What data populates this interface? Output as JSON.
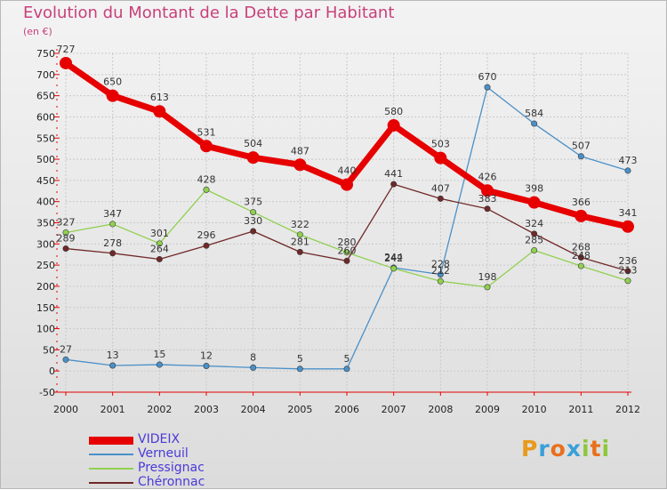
{
  "title": "Evolution du Montant de la Dette par Habitant",
  "unit": "(en €)",
  "logo": "Proxiti",
  "logo_colors": [
    "#e89a1c",
    "#3aa0d8",
    "#e8701c",
    "#3aa0d8",
    "#8cc83c",
    "#e8701c",
    "#8cc83c"
  ],
  "chart_data": {
    "type": "line",
    "x": [
      "2000",
      "2001",
      "2002",
      "2003",
      "2004",
      "2005",
      "2006",
      "2007",
      "2008",
      "2009",
      "2010",
      "2011",
      "2012"
    ],
    "ylim": [
      -50,
      750
    ],
    "yticks": [
      "-50",
      "0",
      "50",
      "100",
      "150",
      "200",
      "250",
      "300",
      "350",
      "400",
      "450",
      "500",
      "550",
      "600",
      "650",
      "700",
      "750"
    ],
    "grid": true,
    "legend": "bottom-left",
    "series": [
      {
        "name": "VIDEIX",
        "color": "#e60000",
        "values": [
          727,
          650,
          613,
          531,
          504,
          487,
          440,
          580,
          503,
          426,
          398,
          366,
          341
        ],
        "labels": [
          "727",
          "650",
          "613",
          "531",
          "504",
          "487",
          "440",
          "580",
          "503",
          "426",
          "398",
          "366",
          "341"
        ]
      },
      {
        "name": "Verneuil",
        "color": "#4a90c8",
        "values": [
          27,
          13,
          15,
          12,
          8,
          5,
          5,
          244,
          228,
          670,
          584,
          507,
          473
        ],
        "labels": [
          "27",
          "13",
          "15",
          "12",
          "8",
          "5",
          "5",
          "244",
          "228",
          "670",
          "584",
          "507",
          "473"
        ]
      },
      {
        "name": "Pressignac",
        "color": "#90d050",
        "values": [
          327,
          347,
          301,
          428,
          375,
          322,
          280,
          242,
          212,
          198,
          285,
          248,
          213
        ],
        "labels": [
          "327",
          "347",
          "301",
          "428",
          "375",
          "322",
          "280",
          "242",
          "212",
          "198",
          "285",
          "248",
          "213"
        ]
      },
      {
        "name": "Chéronnac",
        "color": "#702828",
        "values": [
          289,
          278,
          264,
          296,
          330,
          281,
          260,
          441,
          407,
          383,
          324,
          268,
          236
        ],
        "labels": [
          "289",
          "278",
          "264",
          "296",
          "330",
          "281",
          "260",
          "441",
          "407",
          "383",
          "324",
          "268",
          "236"
        ]
      }
    ]
  }
}
